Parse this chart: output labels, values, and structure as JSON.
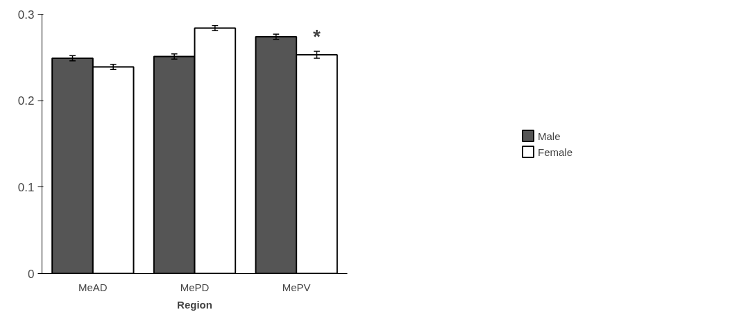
{
  "chart_data": {
    "type": "bar",
    "xlabel": "Region",
    "categories": [
      "MeAD",
      "MePD",
      "MePV"
    ],
    "series": [
      {
        "name": "Male",
        "color": "#555555",
        "values": [
          0.249,
          0.251,
          0.274
        ],
        "errors": [
          0.003,
          0.003,
          0.003
        ]
      },
      {
        "name": "Female",
        "color": "#ffffff",
        "values": [
          0.239,
          0.284,
          0.253
        ],
        "errors": [
          0.003,
          0.003,
          0.004
        ]
      }
    ],
    "ylim": [
      0,
      0.3
    ],
    "yticks": [
      0,
      0.1,
      0.2,
      0.3
    ],
    "grid": false,
    "legend": "right",
    "annotations": [
      {
        "text": "*",
        "x": "MePV",
        "y": 0.262
      }
    ]
  }
}
